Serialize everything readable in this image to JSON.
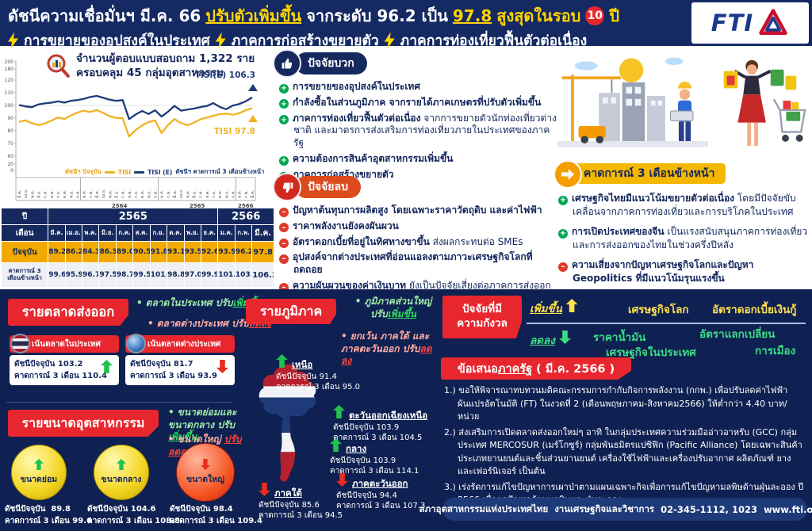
{
  "header": {
    "title_prefix": "ดัชนีความเชื่อมั่นฯ มี.ค. 66",
    "title_up": "ปรับตัวเพิ่มขึ้น",
    "title_mid": "จากระดับ 96.2 เป็น",
    "title_value": "97.8",
    "title_suffix": "สูงสุดในรอบ",
    "title_years": "10",
    "title_unit": "ปี",
    "bullets": [
      "การขยายของอุปสงค์ในประเทศ",
      "ภาคการก่อสร้างขยายตัว",
      "ภาคการท่องเที่ยวฟื้นตัวต่อเนื่อง"
    ],
    "logo_text": "FTI"
  },
  "survey": {
    "line1": "จำนวนผู้ตอบแบบสอบถาม 1,322 ราย",
    "line2": "ครอบคลุม 45 กลุ่มอุตสาหกรรม"
  },
  "chart_data": {
    "type": "line",
    "y_ticks": [
      200,
      180,
      120,
      110,
      100,
      90,
      80,
      70,
      60,
      20,
      0
    ],
    "x_months": [
      "มี.ค.",
      "เม.ย.",
      "พ.ค.",
      "มิ.ย.",
      "ก.ค.",
      "ส.ค.",
      "ก.ย.",
      "ต.ค.",
      "พ.ย.",
      "ธ.ค.",
      "ม.ค.",
      "ก.พ.",
      "มี.ค.",
      "เม.ย.",
      "พ.ค.",
      "มิ.ย.",
      "ก.ค.",
      "ส.ค.",
      "ก.ย.",
      "ต.ค.",
      "พ.ย.",
      "ธ.ค.",
      "ม.ค.",
      "ก.พ.",
      "มี.ค.",
      "เม.ย.",
      "พ.ค.",
      "มิ.ย.",
      "ก.ค.",
      "ส.ค.",
      "ก.ย.",
      "ต.ค.",
      "พ.ย.",
      "ธ.ค.",
      "ม.ค.",
      "ก.พ.",
      "มี.ค."
    ],
    "year_groups": [
      {
        "label": "",
        "start": 0,
        "end": 9
      },
      {
        "label": "2564",
        "start": 10,
        "end": 21
      },
      {
        "label": "2565",
        "start": 22,
        "end": 33
      },
      {
        "label": "2566",
        "start": 34,
        "end": 36
      }
    ],
    "series": [
      {
        "name": "TISI",
        "color": "#F0B323",
        "values": [
          87.0,
          88.2,
          86.0,
          84.5,
          85.8,
          88.0,
          90.5,
          89.3,
          92.0,
          94.3,
          95.8,
          94.8,
          96.3,
          94.0,
          91.5,
          90.2,
          89.8,
          75.5,
          80.5,
          84.2,
          86.8,
          88.2,
          78.2,
          84.5,
          89.2,
          86.2,
          84.3,
          86.3,
          89.0,
          90.5,
          91.8,
          93.1,
          93.5,
          92.6,
          93.9,
          96.2,
          97.8
        ]
      },
      {
        "name": "TISI (E)",
        "color": "#1E3A78",
        "values": [
          100.3,
          99.2,
          98.6,
          100.8,
          101.6,
          102.2,
          103.2,
          102.2,
          103.6,
          104.2,
          105.2,
          106.6,
          107.5,
          106.0,
          104.5,
          103.6,
          104.2,
          89.2,
          92.8,
          95.6,
          93.2,
          96.2,
          91.2,
          95.0,
          99.6,
          95.9,
          96.7,
          97.5,
          98.7,
          99.5,
          101.8,
          98.8,
          97.0,
          99.9,
          101.1,
          103.2,
          106.3
        ]
      }
    ],
    "end_labels": [
      {
        "text": "TISI(E) 106.3",
        "color": "#1E3A78"
      },
      {
        "text": "TISI 97.8",
        "color": "#F0B323"
      }
    ],
    "legend": {
      "cur_label": "ดัชนีฯ ปัจจุบัน",
      "s1": "TISI",
      "s2": "TISI (E)",
      "fc_label": "ดัชนีฯ คาดการณ์ 3 เดือนข้างหน้า"
    }
  },
  "table": {
    "year_label": "ปี",
    "month_label": "เดือน",
    "years": [
      {
        "label": "2565",
        "span": 10
      },
      {
        "label": "2566",
        "span": 3
      }
    ],
    "months": [
      "มี.ค.",
      "เม.ย.",
      "พ.ค.",
      "มิ.ย.",
      "ก.ค.",
      "ส.ค.",
      "ก.ย.",
      "ต.ค.",
      "พ.ย.",
      "ธ.ค.",
      "ม.ค.",
      "ก.พ.",
      "มี.ค."
    ],
    "rows": [
      {
        "label": "ปัจจุบัน",
        "values": [
          "89.2",
          "86.2",
          "84.3",
          "86.3",
          "89.0",
          "90.5",
          "91.8",
          "93.1",
          "93.5",
          "92.6",
          "93.9",
          "96.2",
          "97.8"
        ]
      },
      {
        "label": "คาดการณ์ 3 เดือนข้างหน้า",
        "values": [
          "99.6",
          "95.9",
          "96.7",
          "97.5",
          "98.7",
          "99.5",
          "101.8",
          "98.8",
          "97.0",
          "99.9",
          "101.1",
          "103.2",
          "106.3"
        ]
      }
    ]
  },
  "positive": {
    "badge": "ปัจจัยบวก",
    "items": [
      {
        "b": "การขยายของอุปสงค์ในประเทศ",
        "r": ""
      },
      {
        "b": "กำลังซื้อในส่วนภูมิภาค จากรายได้ภาคเกษตรที่ปรับตัวเพิ่มขึ้น",
        "r": ""
      },
      {
        "b": "ภาคการท่องเที่ยวฟื้นตัวต่อเนื่อง",
        "r": " จากการขยายตัวนักท่องเที่ยวต่างชาติ และมาตรการส่งเสริมการท่องเที่ยวภายในประเทศของภาครัฐ"
      },
      {
        "b": "ความต้องการสินค้าอุตสาหกรรมเพิ่มขึ้น",
        "r": ""
      },
      {
        "b": "ภาคการก่อสร้างขยายตัว",
        "r": ""
      }
    ]
  },
  "negative": {
    "badge": "ปัจจัยลบ",
    "items": [
      {
        "b": "ปัญหาต้นทุนการผลิตสูง โดยเฉพาะราคาวัตถุดิบ และค่าไฟฟ้า",
        "r": ""
      },
      {
        "b": "ราคาพลังงานยังคงผันผวน",
        "r": ""
      },
      {
        "b": "อัตราดอกเบี้ยที่อยู่ในทิศทางขาขึ้น",
        "r": " ส่งผลกระทบต่อ SMEs"
      },
      {
        "b": "อุปสงค์จากต่างประเทศที่อ่อนแอลงตามภาวะเศรษฐกิจโลกที่ถดถอย",
        "r": ""
      },
      {
        "b": "ความผันผวนของค่าเงินบาท",
        "r": " ยังเป็นปัจจัยเสี่ยงต่อภาคการส่งออกของไทย"
      }
    ]
  },
  "forecast": {
    "badge": "คาดการณ์ 3 เดือนข้างหน้า",
    "items": [
      {
        "sign": "plus",
        "b": "เศรษฐกิจไทยมีแนวโน้มขยายตัวต่อเนื่อง",
        "r": " โดยมีปัจจัยขับเคลื่อนจากภาคการท่องเที่ยวและการบริโภคในประเทศ"
      },
      {
        "sign": "plus",
        "b": "การเปิดประเทศของจีน",
        "r": " เป็นแรงสนับสนุนภาคการท่องเที่ยวและการส่งออกของไทยในช่วงครึ่งปีหลัง"
      },
      {
        "sign": "minus",
        "b": "ความเสี่ยงจากปัญหาเศรษฐกิจโลกและปัญหา Geopolitics ที่มีแนวโน้มรุนแรงขึ้น",
        "r": ""
      }
    ]
  },
  "labels": {
    "current": "ดัชนีปัจจุบัน",
    "forecast": "คาดการณ์ 3 เดือน"
  },
  "export_market": {
    "badge": "รายตลาดส่งออก",
    "notes": [
      {
        "pre": "ตลาดในประเทศ ปรับ",
        "key": "เพิ่มขึ้น"
      },
      {
        "pre": "ตลาดต่างประเทศ ปรับ",
        "key": "ลดลง"
      }
    ],
    "cards": [
      {
        "title": "เน้นตลาดในประเทศ",
        "current": "103.2",
        "forecast": "110.4"
      },
      {
        "title": "เน้นตลาดต่างประเทศ",
        "current": "81.7",
        "forecast": "93.9"
      }
    ]
  },
  "industry_size": {
    "badge": "รายขนาดอุตสาหกรรม",
    "notes": [
      {
        "pre": "ขนาดย่อมและขนาดกลาง ปรับ",
        "key": "เพิ่มขึ้น"
      },
      {
        "pre": "ขนาดใหญ่ ",
        "key": "ปรับลดลง"
      }
    ],
    "balls": [
      {
        "label": "ขนาดย่อม",
        "current": "89.8",
        "forecast": "99.6"
      },
      {
        "label": "ขนาดกลาง",
        "current": "104.6",
        "forecast": "108.8"
      },
      {
        "label": "ขนาดใหญ่",
        "current": "98.4",
        "forecast": "109.4"
      }
    ]
  },
  "regions": {
    "badge": "รายภูมิภาค",
    "note_up": {
      "pre": "ภูมิภาคส่วนใหญ่ ปรับ",
      "key": "เพิ่มขึ้น"
    },
    "note_down": {
      "pre": "ยกเว้น ภาคใต้ และภาคตะวันออก ปรับ",
      "key": "ลดลง"
    },
    "items": [
      {
        "name": "เหนือ",
        "current": "91.4",
        "forecast": "95.0"
      },
      {
        "name": "ตะวันออกเฉียงเหนือ",
        "current": "103.9",
        "forecast": "104.5"
      },
      {
        "name": "กลาง",
        "current": "103.9",
        "forecast": "114.1"
      },
      {
        "name": "ภาคตะวันออก",
        "current": "94.4",
        "forecast": "107.3"
      },
      {
        "name": "ภาคใต้",
        "current": "85.6",
        "forecast": "94.5"
      }
    ]
  },
  "concerns": {
    "badge_line1": "ปัจจัยที่มี",
    "badge_line2": "ความกังวล",
    "up_label": "เพิ่มขึ้น",
    "up_items": [
      "เศรษฐกิจโลก",
      "อัตราดอกเบี้ยเงินกู้"
    ],
    "down_label": "ลดลง",
    "down_items": [
      "ราคาน้ำมัน",
      "อัตราแลกเปลี่ยน",
      "เศรษฐกิจในประเทศ",
      "การเมือง"
    ]
  },
  "proposals": {
    "badge_pre": "ข้อเสนอ",
    "badge_u": "ภาครัฐ",
    "badge_post": " ( มี.ค. 2566 )",
    "items": [
      {
        "num": "1.)",
        "text": "ขอให้พิจารณาทบทวนมติคณะกรรมการกำกับกิจการพลังงาน (กกพ.) เพื่อปรับลดค่าไฟฟ้าผันแปรอัตโนมัติ (FT) ในงวดที่ 2 (เดือนพฤษภาคม-สิงหาคม2566) ให้ต่ำกว่า 4.40 บาท/หน่วย"
      },
      {
        "num": "2.)",
        "text": "ส่งเสริมการเปิดตลาดส่งออกใหม่ๆ อาทิ ในกลุ่มประเทศความร่วมมืออ่าวอาหรับ (GCC) กลุ่มประเทศ MERCOSUR (เมร์โกซูร์) กลุ่มพันธมิตรแปซิฟิก (Pacific Alliance) โดยเฉพาะสินค้าประเภทยานยนต์และชิ้นส่วนยานยนต์ เครื่องใช้ไฟฟ้าและเครื่องปรับอากาศ ผลิตภัณฑ์ ยาง และเฟอร์นิเจอร์ เป็นต้น"
      },
      {
        "num": "3.)",
        "text": "เร่งรัดการแก้ไขปัญหาการเผาป่าตามแผนเฉพาะกิจเพื่อการแก้ไขปัญหามลพิษด้านฝุ่นละออง ปี 2566 เพื่อลดปัญหาด้านมลพิษและฝุ่นละออง"
      }
    ]
  },
  "footer": {
    "org": "สภาอุตสาหกรรมแห่งประเทศไทย",
    "dept": "งานเศรษฐกิจและวิชาการ",
    "phone": "02-345-1112, 1023",
    "web": "www.fti.or.th"
  },
  "colors": {
    "navy": "#152A63",
    "red": "#E8262D",
    "yellow": "#FFD400",
    "gold_row": "#F2A900",
    "green": "#00A651",
    "line_tisi": "#F0B323",
    "line_tisie": "#1E3A78"
  }
}
